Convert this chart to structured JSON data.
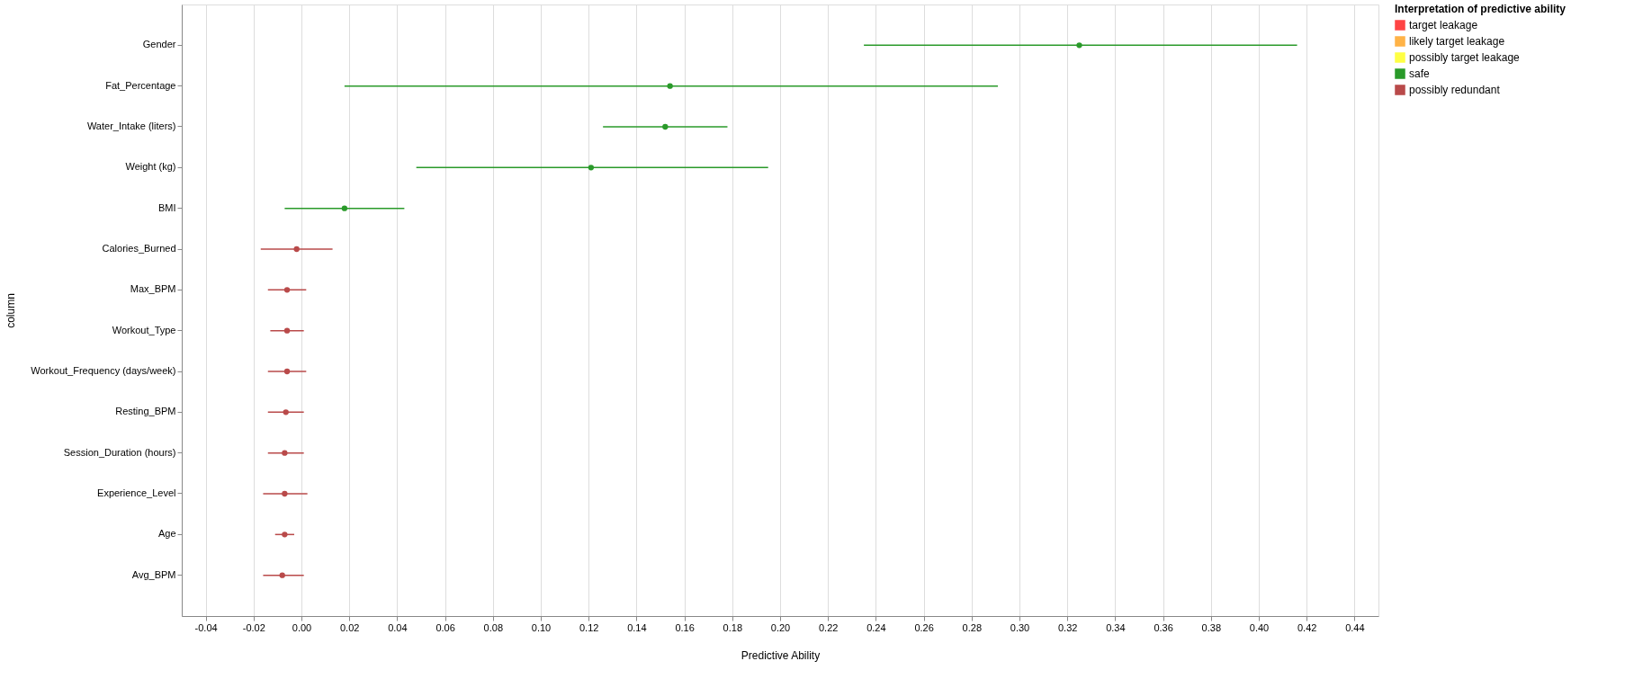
{
  "chart_data": {
    "type": "scatter",
    "orientation": "horizontal",
    "xlabel": "Predictive Ability",
    "ylabel": "column",
    "legend_title": "Interpretation of predictive ability",
    "legend": "top right",
    "grid": "x",
    "marker": "circle",
    "categories": [
      "Gender",
      "Fat_Percentage",
      "Water_Intake (liters)",
      "Weight (kg)",
      "BMI",
      "Calories_Burned",
      "Max_BPM",
      "Workout_Type",
      "Workout_Frequency (days/week)",
      "Resting_BPM",
      "Session_Duration (hours)",
      "Experience_Level",
      "Age",
      "Avg_BPM"
    ],
    "xlim": [
      -0.05,
      0.45
    ],
    "xticks": [
      {
        "value": -0.04,
        "label": "-0.04"
      },
      {
        "value": -0.02,
        "label": "-0.02"
      },
      {
        "value": 0,
        "label": "0.00"
      },
      {
        "value": 0.02,
        "label": "0.02"
      },
      {
        "value": 0.04,
        "label": "0.04"
      },
      {
        "value": 0.06,
        "label": "0.06"
      },
      {
        "value": 0.08,
        "label": "0.08"
      },
      {
        "value": 0.1,
        "label": "0.10"
      },
      {
        "value": 0.12,
        "label": "0.12"
      },
      {
        "value": 0.14,
        "label": "0.14"
      },
      {
        "value": 0.16,
        "label": "0.16"
      },
      {
        "value": 0.18,
        "label": "0.18"
      },
      {
        "value": 0.2,
        "label": "0.20"
      },
      {
        "value": 0.22,
        "label": "0.22"
      },
      {
        "value": 0.24,
        "label": "0.24"
      },
      {
        "value": 0.26,
        "label": "0.26"
      },
      {
        "value": 0.28,
        "label": "0.28"
      },
      {
        "value": 0.3,
        "label": "0.30"
      },
      {
        "value": 0.32,
        "label": "0.32"
      },
      {
        "value": 0.34,
        "label": "0.34"
      },
      {
        "value": 0.36,
        "label": "0.36"
      },
      {
        "value": 0.38,
        "label": "0.38"
      },
      {
        "value": 0.4,
        "label": "0.40"
      },
      {
        "value": 0.42,
        "label": "0.42"
      },
      {
        "value": 0.44,
        "label": "0.44"
      }
    ],
    "series": [
      {
        "name": "target leakage",
        "color": "#ff4444",
        "values": [
          null,
          null,
          null,
          null,
          null,
          null,
          null,
          null,
          null,
          null,
          null,
          null,
          null,
          null
        ],
        "errors": [
          null,
          null,
          null,
          null,
          null,
          null,
          null,
          null,
          null,
          null,
          null,
          null,
          null,
          null
        ]
      },
      {
        "name": "likely target leakage",
        "color": "#ffb347",
        "values": [
          null,
          null,
          null,
          null,
          null,
          null,
          null,
          null,
          null,
          null,
          null,
          null,
          null,
          null
        ],
        "errors": [
          null,
          null,
          null,
          null,
          null,
          null,
          null,
          null,
          null,
          null,
          null,
          null,
          null,
          null
        ]
      },
      {
        "name": "possibly target leakage",
        "color": "#ffff44",
        "values": [
          null,
          null,
          null,
          null,
          null,
          null,
          null,
          null,
          null,
          null,
          null,
          null,
          null,
          null
        ],
        "errors": [
          null,
          null,
          null,
          null,
          null,
          null,
          null,
          null,
          null,
          null,
          null,
          null,
          null,
          null
        ]
      },
      {
        "name": "safe",
        "color": "#2a9a2a",
        "values": [
          0.325,
          0.154,
          0.152,
          0.121,
          0.018,
          null,
          null,
          null,
          null,
          null,
          null,
          null,
          null,
          null
        ],
        "errors": [
          [
            0.235,
            0.416
          ],
          [
            0.018,
            0.291
          ],
          [
            0.126,
            0.178
          ],
          [
            0.048,
            0.195
          ],
          [
            -0.007,
            0.043
          ],
          null,
          null,
          null,
          null,
          null,
          null,
          null,
          null,
          null
        ]
      },
      {
        "name": "possibly redundant",
        "color": "#b94a4a",
        "values": [
          null,
          null,
          null,
          null,
          null,
          -0.002,
          -0.006,
          -0.006,
          -0.006,
          -0.0065,
          -0.007,
          -0.007,
          -0.007,
          -0.008
        ],
        "errors": [
          null,
          null,
          null,
          null,
          null,
          [
            -0.017,
            0.013
          ],
          [
            -0.014,
            0.002
          ],
          [
            -0.013,
            0.001
          ],
          [
            -0.014,
            0.002
          ],
          [
            -0.014,
            0.001
          ],
          [
            -0.014,
            0.001
          ],
          [
            -0.016,
            0.0025
          ],
          [
            -0.011,
            -0.003
          ],
          [
            -0.016,
            0.001
          ]
        ]
      }
    ]
  }
}
